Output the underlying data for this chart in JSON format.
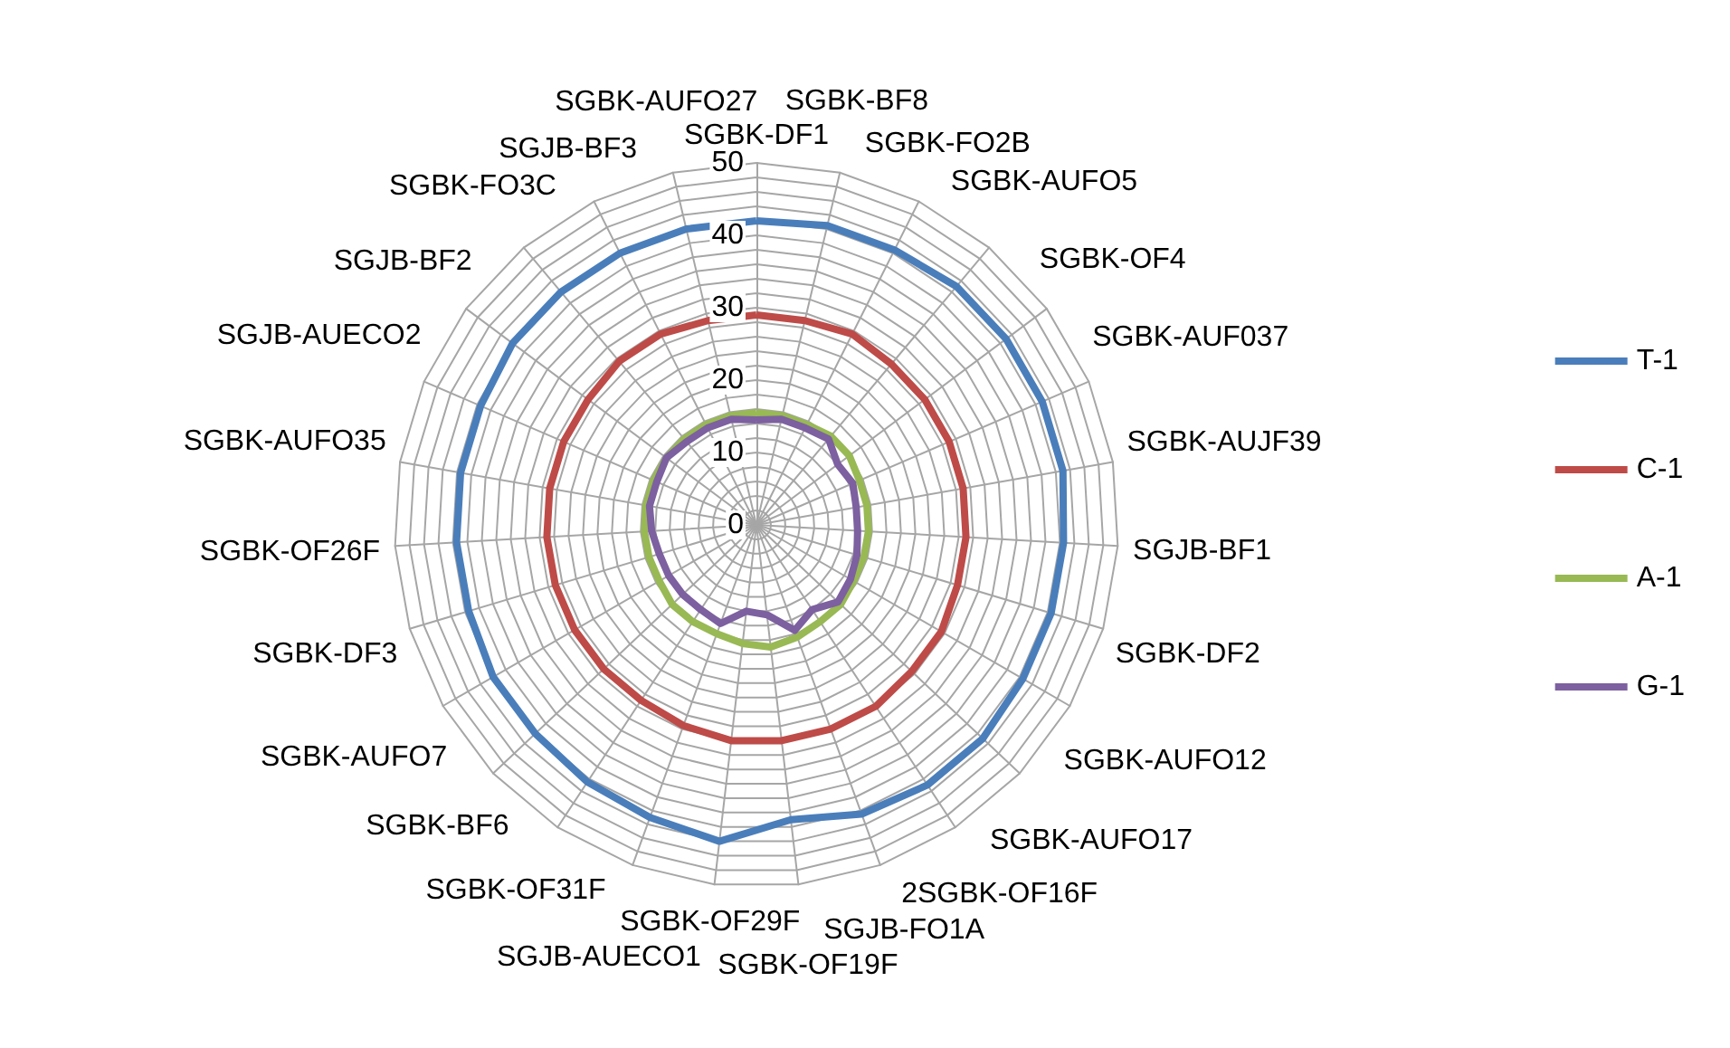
{
  "chart_data": {
    "type": "radar",
    "categories": [
      "SGBK-DF1",
      "SGBK-BF8",
      "SGBK-FO2B",
      "SGBK-AUFO5",
      "SGBK-OF4",
      "SGBK-AUF037",
      "SGBK-AUJF39",
      "SGJB-BF1",
      "SGBK-DF2",
      "SGBK-AUFO12",
      "SGBK-AUFO17",
      "2SGBK-OF16F",
      "SGJB-FO1A",
      "SGBK-OF19F",
      "SGBK-OF29F",
      "SGJB-AUECO1",
      "SGBK-OF31F",
      "SGBK-BF6",
      "SGBK-AUFO7",
      "SGBK-DF3",
      "SGBK-OF26F",
      "SGBK-AUFO35",
      "SGJB-AUECO2",
      "SGJB-BF2",
      "SGBK-FO3C",
      "SGJB-BF3",
      "SGBK-AUFO27"
    ],
    "series": [
      {
        "name": "T-1",
        "color": "#4a7ebb",
        "values": [
          42,
          42.5,
          42.5,
          43,
          43,
          43,
          43,
          42.5,
          42.5,
          42.5,
          43,
          43,
          42.5,
          41,
          44,
          43,
          42.5,
          42,
          42,
          41.5,
          41.5,
          41.5,
          41.5,
          42,
          42,
          42,
          42
        ]
      },
      {
        "name": "C-1",
        "color": "#be4b48",
        "values": [
          29,
          29,
          29.5,
          29,
          29,
          29,
          29,
          29,
          29,
          29.5,
          29.5,
          30,
          30,
          30,
          30,
          29.5,
          29,
          29,
          29,
          29,
          29,
          29,
          29,
          29,
          29.5,
          29.5,
          29
        ]
      },
      {
        "name": "A-1",
        "color": "#98b954",
        "values": [
          15.5,
          15.5,
          15.5,
          16,
          16,
          15.5,
          15.5,
          15.5,
          15.5,
          15.5,
          16,
          16,
          16.5,
          17,
          16.5,
          16,
          16,
          16,
          15.5,
          15.5,
          15.5,
          15.5,
          15.5,
          15.5,
          15.5,
          15.5,
          15.5
        ]
      },
      {
        "name": "G-1",
        "color": "#7d60a0",
        "values": [
          14.5,
          15,
          15,
          15.5,
          14,
          14.5,
          14,
          14,
          14.5,
          15,
          15.5,
          14,
          15.5,
          12.5,
          12,
          14.5,
          14,
          14,
          14,
          14,
          14.5,
          15,
          15,
          15.5,
          15,
          15,
          15
        ]
      }
    ],
    "ylim": [
      0,
      50
    ],
    "yticks": [
      0,
      10,
      20,
      30,
      40,
      50
    ],
    "grid": true,
    "legend": "right",
    "marker": "none",
    "line_style": "solid"
  }
}
